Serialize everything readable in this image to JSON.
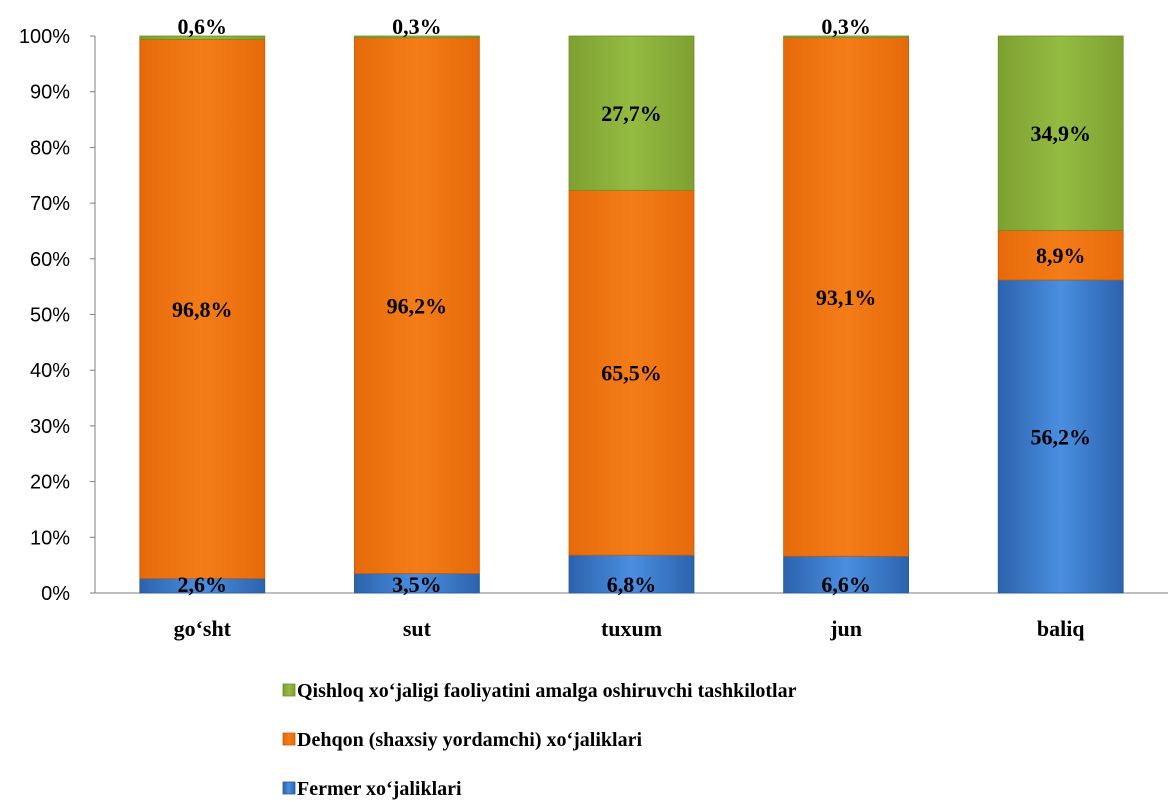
{
  "chart_data": {
    "type": "bar",
    "stacked": true,
    "percent": true,
    "categories": [
      "go‘sht",
      "sut",
      "tuxum",
      "jun",
      "baliq"
    ],
    "series": [
      {
        "name": "Fermer xo‘jaliklari",
        "values": [
          2.6,
          3.5,
          6.8,
          6.6,
          56.2
        ],
        "labels": [
          "2,6%",
          "3,5%",
          "6,8%",
          "6,6%",
          "56,2%"
        ],
        "color": "#3a7bd0"
      },
      {
        "name": "Dehqon (shaxsiy yordamchi) xo‘jaliklari",
        "values": [
          96.8,
          96.2,
          65.5,
          93.1,
          8.9
        ],
        "labels": [
          "96,8%",
          "96,2%",
          "65,5%",
          "93,1%",
          "8,9%"
        ],
        "color": "#f07a14"
      },
      {
        "name": "Qishloq xo‘jaligi faoliyatini amalga oshiruvchi tashkilotlar",
        "values": [
          0.6,
          0.3,
          27.7,
          0.3,
          34.9
        ],
        "labels": [
          "0,6%",
          "0,3%",
          "27,7%",
          "0,3%",
          "34,9%"
        ],
        "color": "#8cb03a"
      }
    ],
    "ylim": [
      0,
      100
    ],
    "yticks": [
      "0%",
      "10%",
      "20%",
      "30%",
      "40%",
      "50%",
      "60%",
      "70%",
      "80%",
      "90%",
      "100%"
    ],
    "grid": false,
    "legend_position": "bottom",
    "title": "",
    "xlabel": "",
    "ylabel": ""
  }
}
